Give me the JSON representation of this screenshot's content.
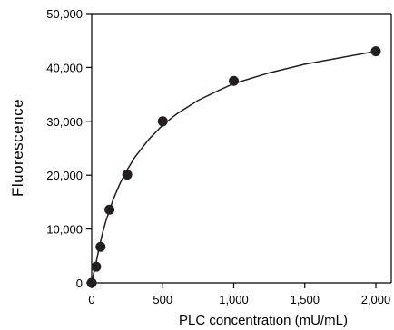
{
  "chart_data": {
    "type": "scatter",
    "title": "",
    "xlabel": "PLC concentration (mU/mL)",
    "ylabel": "Fluorescence",
    "xlim": [
      0,
      2000
    ],
    "ylim": [
      0,
      50000
    ],
    "x_ticks": [
      0,
      500,
      1000,
      1500,
      2000
    ],
    "x_tick_labels": [
      "0",
      "500",
      "1,000",
      "1,500",
      "2,000"
    ],
    "y_ticks": [
      0,
      10000,
      20000,
      30000,
      40000,
      50000
    ],
    "y_tick_labels": [
      "0",
      "10,000",
      "20,000",
      "30,000",
      "40,000",
      "50,000"
    ],
    "grid": false,
    "series": [
      {
        "x": [
          0,
          31.25,
          62.5,
          125,
          250,
          500,
          1000,
          2000
        ],
        "y": [
          0,
          3000,
          6700,
          13600,
          20100,
          30000,
          37500,
          43000
        ]
      }
    ],
    "fit_curve": {
      "type": "saturation",
      "x": [
        0,
        10,
        25,
        50,
        75,
        100,
        150,
        200,
        250,
        300,
        400,
        500,
        600,
        750,
        900,
        1000,
        1250,
        1500,
        1750,
        2000
      ],
      "y": [
        0,
        1280,
        3000,
        6200,
        9100,
        11500,
        15400,
        18500,
        21000,
        23200,
        26600,
        29300,
        31400,
        33900,
        35800,
        37000,
        39000,
        40600,
        41800,
        43000
      ]
    },
    "marker_color": "#231f20",
    "line_color": "#231f20"
  }
}
